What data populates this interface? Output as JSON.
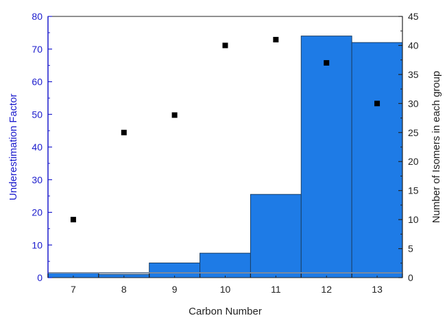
{
  "chart_data": {
    "type": "bar",
    "categories": [
      "7",
      "8",
      "9",
      "10",
      "11",
      "12",
      "13"
    ],
    "xlabel": "Carbon Number",
    "ylabel": "Underestimation Factor",
    "y2label": "Number of Isomers in each group",
    "ylim": [
      0,
      80
    ],
    "y2lim": [
      0,
      45
    ],
    "yticks": [
      "0",
      "10",
      "20",
      "30",
      "40",
      "50",
      "60",
      "70",
      "80"
    ],
    "y2ticks": [
      "0",
      "5",
      "10",
      "15",
      "20",
      "25",
      "30",
      "35",
      "40",
      "45"
    ],
    "bar_axis": "left",
    "bar_values": [
      1.5,
      1.0,
      4.5,
      7.5,
      25.5,
      74,
      72
    ],
    "scatter_axis": "right",
    "scatter_values": [
      10,
      25,
      28,
      40,
      41,
      37,
      30
    ],
    "grid": false,
    "legend": "none",
    "colors": {
      "bar_fill": "#1e7be6",
      "bar_edge": "#1a3f66",
      "left_axis": "#1a1acc",
      "right_axis": "#222222",
      "marker": "#000000",
      "baseline": "#7a8aa0"
    }
  }
}
